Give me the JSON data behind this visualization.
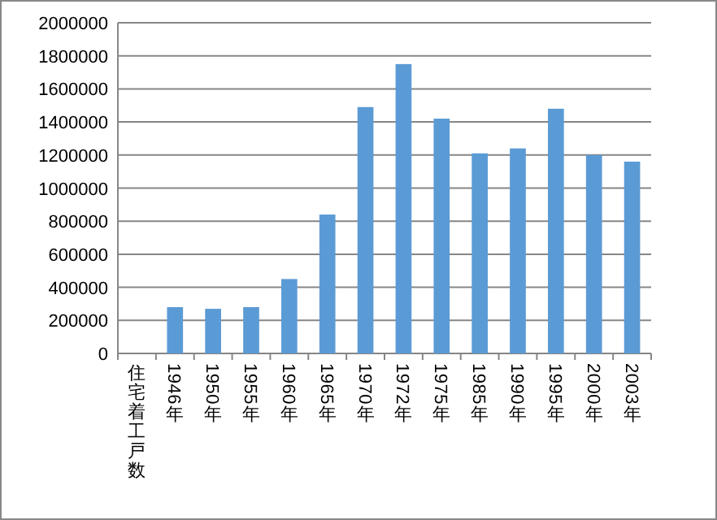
{
  "chart_data": {
    "type": "bar",
    "categories": [
      "住宅着工戸数",
      "1946年",
      "1950年",
      "1955年",
      "1960年",
      "1965年",
      "1970年",
      "1972年",
      "1975年",
      "1985年",
      "1990年",
      "1995年",
      "2000年",
      "2003年"
    ],
    "values": [
      null,
      280000,
      270000,
      280000,
      450000,
      840000,
      1490000,
      1750000,
      1420000,
      1210000,
      1240000,
      1480000,
      1200000,
      1160000
    ],
    "color": "#5b9bd5",
    "ylim": [
      0,
      2000000
    ],
    "yticks": [
      0,
      200000,
      400000,
      600000,
      800000,
      1000000,
      1200000,
      1400000,
      1600000,
      1800000,
      2000000
    ],
    "grid": "y"
  }
}
